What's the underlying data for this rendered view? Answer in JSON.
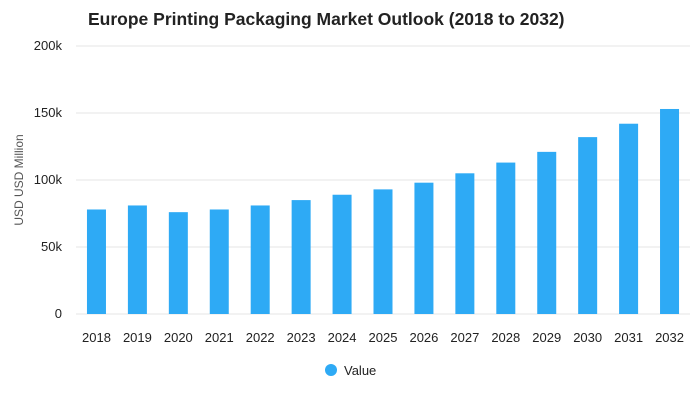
{
  "colors": {
    "bar": "#2eaaf5",
    "grid": "#e6e6e6",
    "text": "#222222"
  },
  "chart_data": {
    "type": "bar",
    "title": "Europe Printing Packaging Market Outlook (2018 to 2032)",
    "xlabel": "",
    "ylabel": "USD USD Million",
    "categories": [
      "2018",
      "2019",
      "2020",
      "2021",
      "2022",
      "2023",
      "2024",
      "2025",
      "2026",
      "2027",
      "2028",
      "2029",
      "2030",
      "2031",
      "2032"
    ],
    "series": [
      {
        "name": "Value",
        "values": [
          78000,
          81000,
          76000,
          78000,
          81000,
          85000,
          89000,
          93000,
          98000,
          105000,
          113000,
          121000,
          132000,
          142000,
          153000
        ]
      }
    ],
    "ylim": [
      0,
      200000
    ],
    "yticks": [
      0,
      50000,
      100000,
      150000,
      200000
    ],
    "ytick_labels": [
      "0",
      "50k",
      "100k",
      "150k",
      "200k"
    ],
    "grid": true,
    "legend_position": "bottom-center"
  }
}
